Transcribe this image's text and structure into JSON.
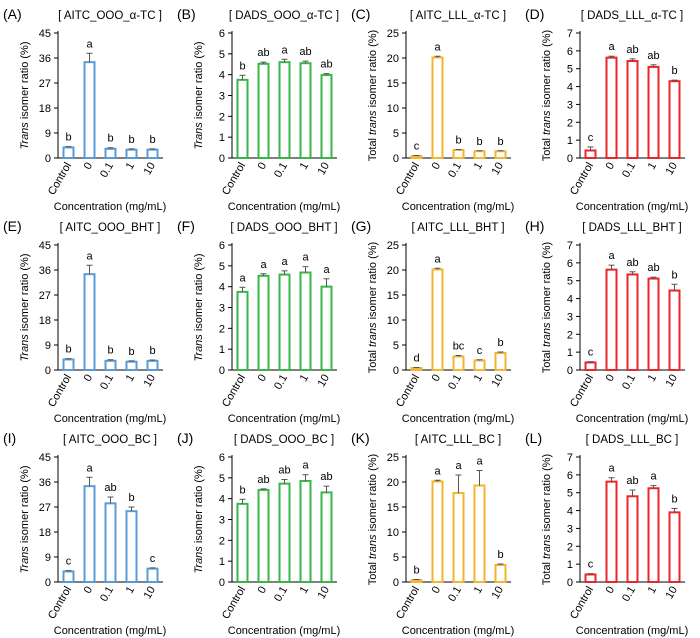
{
  "figure": {
    "row_xlabel": "Concentration (mg/mL)",
    "ylabel_trans": "Trans isomer ratio (%)",
    "ylabel_total": "Total trans isomer ratio (%)"
  },
  "chart_data": [
    {
      "panel": "(A)",
      "title": "[ AITC_OOO_α-TC ]",
      "type": "bar",
      "ylabel_kind": "trans",
      "color": "#5b9bd5",
      "categories": [
        "Control",
        "0",
        "0.1",
        "1",
        "10"
      ],
      "values": [
        3.8,
        34.5,
        3.3,
        3.0,
        3.0
      ],
      "errors": [
        0.3,
        3.2,
        0.4,
        0.3,
        0.3
      ],
      "letters": [
        "b",
        "a",
        "b",
        "b",
        "b"
      ],
      "ylim": [
        0,
        45
      ],
      "yticks": [
        0,
        9,
        18,
        27,
        36,
        45
      ]
    },
    {
      "panel": "(B)",
      "title": "[ DADS_OOO_α-TC ]",
      "type": "bar",
      "ylabel_kind": "trans",
      "color": "#39b54a",
      "categories": [
        "Control",
        "0",
        "0.1",
        "1",
        "10"
      ],
      "values": [
        3.75,
        4.52,
        4.6,
        4.55,
        3.98
      ],
      "errors": [
        0.22,
        0.08,
        0.14,
        0.1,
        0.07
      ],
      "letters": [
        "b",
        "ab",
        "a",
        "ab",
        "ab"
      ],
      "ylim": [
        0,
        6
      ],
      "yticks": [
        0,
        1,
        2,
        3,
        4,
        5,
        6
      ]
    },
    {
      "panel": "(C)",
      "title": "[ AITC_LLL_α-TC ]",
      "type": "bar",
      "ylabel_kind": "total",
      "color": "#f2b632",
      "categories": [
        "Control",
        "0",
        "0.1",
        "1",
        "10"
      ],
      "values": [
        0.4,
        20.1,
        1.6,
        1.35,
        1.35
      ],
      "errors": [
        0.1,
        0.25,
        0.1,
        0.1,
        0.1
      ],
      "letters": [
        "c",
        "a",
        "b",
        "b",
        "b"
      ],
      "ylim": [
        0,
        25
      ],
      "yticks": [
        0,
        5,
        10,
        15,
        20,
        25
      ]
    },
    {
      "panel": "(D)",
      "title": "[ DADS_LLL_α-TC ]",
      "type": "bar",
      "ylabel_kind": "total",
      "color": "#e8272b",
      "categories": [
        "Control",
        "0",
        "0.1",
        "1",
        "10"
      ],
      "values": [
        0.42,
        5.62,
        5.43,
        5.1,
        4.3
      ],
      "errors": [
        0.2,
        0.08,
        0.12,
        0.12,
        0.06
      ],
      "letters": [
        "c",
        "a",
        "ab",
        "ab",
        "b"
      ],
      "ylim": [
        0,
        7
      ],
      "yticks": [
        0,
        1,
        2,
        3,
        4,
        5,
        6,
        7
      ]
    },
    {
      "panel": "(E)",
      "title": "[ AITC_OOO_BHT ]",
      "type": "bar",
      "ylabel_kind": "trans",
      "color": "#5b9bd5",
      "categories": [
        "Control",
        "0",
        "0.1",
        "1",
        "10"
      ],
      "values": [
        3.8,
        34.5,
        3.3,
        3.0,
        3.3
      ],
      "errors": [
        0.3,
        3.2,
        0.4,
        0.3,
        0.3
      ],
      "letters": [
        "b",
        "a",
        "b",
        "b",
        "b"
      ],
      "ylim": [
        0,
        45
      ],
      "yticks": [
        0,
        9,
        18,
        27,
        36,
        45
      ]
    },
    {
      "panel": "(F)",
      "title": "[ DADS_OOO_BHT ]",
      "type": "bar",
      "ylabel_kind": "trans",
      "color": "#39b54a",
      "categories": [
        "Control",
        "0",
        "0.1",
        "1",
        "10"
      ],
      "values": [
        3.75,
        4.52,
        4.58,
        4.68,
        4.0
      ],
      "errors": [
        0.22,
        0.1,
        0.18,
        0.28,
        0.38
      ],
      "letters": [
        "a",
        "a",
        "a",
        "a",
        "a"
      ],
      "ylim": [
        0,
        6
      ],
      "yticks": [
        0,
        1,
        2,
        3,
        4,
        5,
        6
      ]
    },
    {
      "panel": "(G)",
      "title": "[ AITC_LLL_BHT ]",
      "type": "bar",
      "ylabel_kind": "total",
      "color": "#f2b632",
      "categories": [
        "Control",
        "0",
        "0.1",
        "1",
        "10"
      ],
      "values": [
        0.4,
        20.1,
        2.7,
        1.9,
        3.4
      ],
      "errors": [
        0.1,
        0.25,
        0.2,
        0.15,
        0.2
      ],
      "letters": [
        "d",
        "a",
        "bc",
        "c",
        "b"
      ],
      "ylim": [
        0,
        25
      ],
      "yticks": [
        0,
        5,
        10,
        15,
        20,
        25
      ]
    },
    {
      "panel": "(H)",
      "title": "[ DADS_LLL_BHT ]",
      "type": "bar",
      "ylabel_kind": "total",
      "color": "#e8272b",
      "categories": [
        "Control",
        "0",
        "0.1",
        "1",
        "10"
      ],
      "values": [
        0.42,
        5.62,
        5.35,
        5.12,
        4.45
      ],
      "errors": [
        0.05,
        0.25,
        0.15,
        0.08,
        0.35
      ],
      "letters": [
        "c",
        "a",
        "ab",
        "ab",
        "b"
      ],
      "ylim": [
        0,
        7
      ],
      "yticks": [
        0,
        1,
        2,
        3,
        4,
        5,
        6,
        7
      ]
    },
    {
      "panel": "(I)",
      "title": "[ AITC_OOO_BC ]",
      "type": "bar",
      "ylabel_kind": "trans",
      "color": "#5b9bd5",
      "categories": [
        "Control",
        "0",
        "0.1",
        "1",
        "10"
      ],
      "values": [
        3.8,
        34.5,
        28.3,
        25.5,
        4.8
      ],
      "errors": [
        0.3,
        3.2,
        2.3,
        1.5,
        0.3
      ],
      "letters": [
        "c",
        "a",
        "ab",
        "b",
        "c"
      ],
      "ylim": [
        0,
        45
      ],
      "yticks": [
        0,
        9,
        18,
        27,
        36,
        45
      ]
    },
    {
      "panel": "(J)",
      "title": "[ DADS_OOO_BC ]",
      "type": "bar",
      "ylabel_kind": "trans",
      "color": "#39b54a",
      "categories": [
        "Control",
        "0",
        "0.1",
        "1",
        "10"
      ],
      "values": [
        3.75,
        4.42,
        4.72,
        4.85,
        4.3
      ],
      "errors": [
        0.22,
        0.05,
        0.2,
        0.3,
        0.3
      ],
      "letters": [
        "b",
        "ab",
        "ab",
        "a",
        "ab"
      ],
      "ylim": [
        0,
        6
      ],
      "yticks": [
        0,
        1,
        2,
        3,
        4,
        5,
        6
      ]
    },
    {
      "panel": "(K)",
      "title": "[ AITC_LLL_BC ]",
      "type": "bar",
      "ylabel_kind": "total",
      "color": "#f2b632",
      "categories": [
        "Control",
        "0",
        "0.1",
        "1",
        "10"
      ],
      "values": [
        0.4,
        20.1,
        17.8,
        19.3,
        3.4
      ],
      "errors": [
        0.1,
        0.25,
        3.6,
        3.0,
        0.2
      ],
      "letters": [
        "b",
        "a",
        "a",
        "a",
        "b"
      ],
      "ylim": [
        0,
        25
      ],
      "yticks": [
        0,
        5,
        10,
        15,
        20,
        25
      ]
    },
    {
      "panel": "(L)",
      "title": "[ DADS_LLL_BC ]",
      "type": "bar",
      "ylabel_kind": "total",
      "color": "#e8272b",
      "categories": [
        "Control",
        "0",
        "0.1",
        "1",
        "10"
      ],
      "values": [
        0.42,
        5.62,
        4.8,
        5.25,
        3.9
      ],
      "errors": [
        0.05,
        0.22,
        0.35,
        0.15,
        0.22
      ],
      "letters": [
        "c",
        "a",
        "ab",
        "a",
        "b"
      ],
      "ylim": [
        0,
        7
      ],
      "yticks": [
        0,
        1,
        2,
        3,
        4,
        5,
        6,
        7
      ]
    }
  ]
}
